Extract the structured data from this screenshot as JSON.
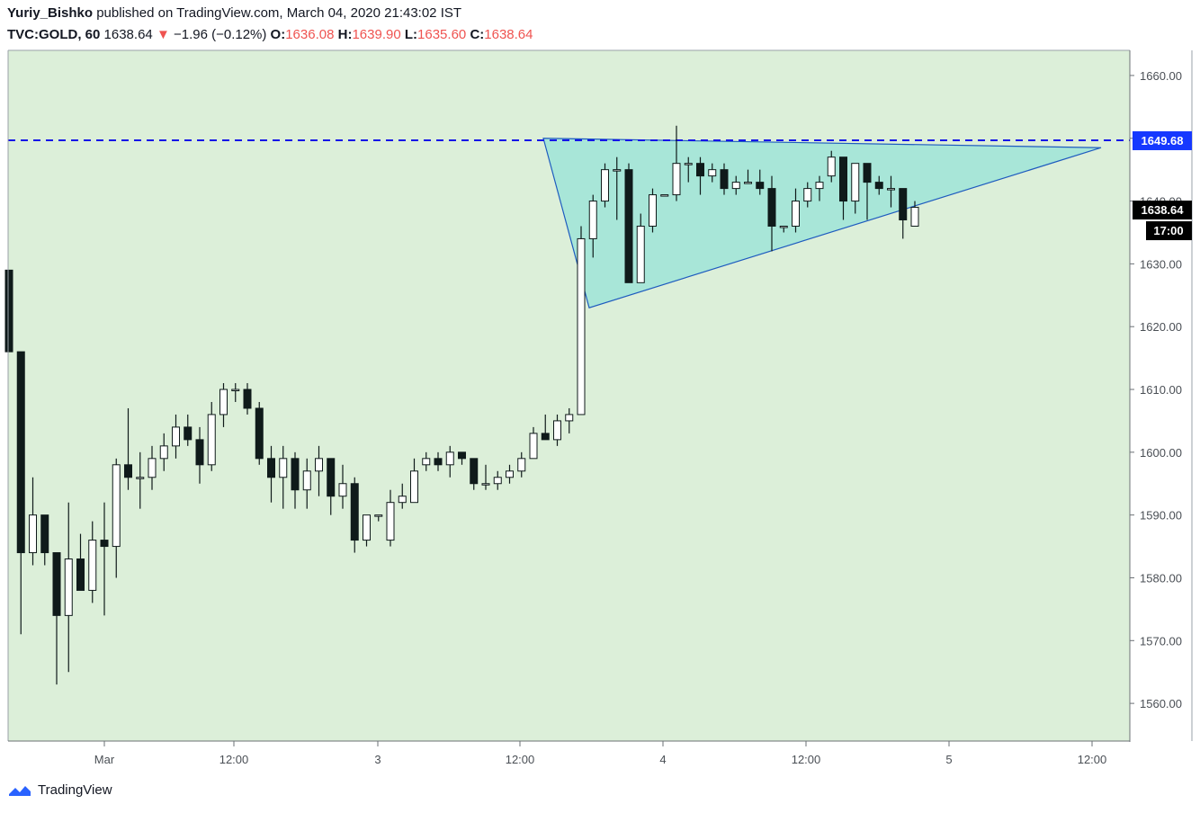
{
  "header": {
    "author": "Yuriy_Bishko",
    "published_text": "published on TradingView.com, March 04, 2020 21:43:02 IST",
    "symbol": "TVC:GOLD, 60",
    "last": "1638.64",
    "change_arrow": "▼",
    "change": "−1.96 (−0.12%)",
    "o_label": "O:",
    "o_value": "1636.08",
    "h_label": "H:",
    "h_value": "1639.90",
    "l_label": "L:",
    "l_value": "1635.60",
    "c_label": "C:",
    "c_value": "1638.64"
  },
  "branding": {
    "logo_text": "TradingView",
    "logo_icon": "tradingview-logo-icon"
  },
  "colors": {
    "background": "#dcefd9",
    "triangle_fill": "#a8e6d8",
    "triangle_stroke": "#1e5bbf",
    "hline": "#1515e8",
    "bear_body": "#0f1a1a",
    "bull_body": "#ffffff",
    "price_tag_bg": "#1638ff",
    "last_tag_bg": "#000000"
  },
  "chart_data": {
    "type": "candlestick",
    "symbol": "TVC:GOLD",
    "interval": "60",
    "ylim": [
      1554,
      1664
    ],
    "y_ticks": [
      "1660.00",
      "1650.00",
      "1640.00",
      "1630.00",
      "1620.00",
      "1610.00",
      "1600.00",
      "1590.00",
      "1580.00",
      "1570.00",
      "1560.00"
    ],
    "x_ticks": [
      "Mar",
      "12:00",
      "3",
      "12:00",
      "4",
      "12:00",
      "5",
      "12:00"
    ],
    "horizontal_line": {
      "value": 1649.68,
      "label": "1649.68",
      "style": "dashed"
    },
    "last_price_label": "1638.64",
    "countdown_label": "17:00",
    "triangle": [
      [
        0,
        1650
      ],
      [
        4,
        1623
      ],
      [
        49,
        1648.5
      ]
    ],
    "candles": [
      {
        "o": 1629,
        "h": 1629,
        "l": 1616,
        "c": 1616
      },
      {
        "o": 1616,
        "h": 1616,
        "l": 1571,
        "c": 1584
      },
      {
        "o": 1584,
        "h": 1596,
        "l": 1582,
        "c": 1590
      },
      {
        "o": 1590,
        "h": 1590,
        "l": 1582,
        "c": 1584
      },
      {
        "o": 1584,
        "h": 1584,
        "l": 1563,
        "c": 1574
      },
      {
        "o": 1574,
        "h": 1592,
        "l": 1565,
        "c": 1583
      },
      {
        "o": 1583,
        "h": 1587,
        "l": 1578,
        "c": 1578
      },
      {
        "o": 1578,
        "h": 1589,
        "l": 1576,
        "c": 1586
      },
      {
        "o": 1586,
        "h": 1592,
        "l": 1574,
        "c": 1585
      },
      {
        "o": 1585,
        "h": 1599,
        "l": 1580,
        "c": 1598
      },
      {
        "o": 1598,
        "h": 1607,
        "l": 1594,
        "c": 1596
      },
      {
        "o": 1596,
        "h": 1600,
        "l": 1591,
        "c": 1596
      },
      {
        "o": 1596,
        "h": 1601,
        "l": 1594,
        "c": 1599
      },
      {
        "o": 1599,
        "h": 1603,
        "l": 1597,
        "c": 1601
      },
      {
        "o": 1601,
        "h": 1606,
        "l": 1599,
        "c": 1604
      },
      {
        "o": 1604,
        "h": 1606,
        "l": 1601,
        "c": 1602
      },
      {
        "o": 1602,
        "h": 1604,
        "l": 1595,
        "c": 1598
      },
      {
        "o": 1598,
        "h": 1608,
        "l": 1597,
        "c": 1606
      },
      {
        "o": 1606,
        "h": 1611,
        "l": 1604,
        "c": 1610
      },
      {
        "o": 1610,
        "h": 1611,
        "l": 1608,
        "c": 1610
      },
      {
        "o": 1610,
        "h": 1611,
        "l": 1606,
        "c": 1607
      },
      {
        "o": 1607,
        "h": 1608,
        "l": 1598,
        "c": 1599
      },
      {
        "o": 1599,
        "h": 1601,
        "l": 1592,
        "c": 1596
      },
      {
        "o": 1596,
        "h": 1601,
        "l": 1591,
        "c": 1599
      },
      {
        "o": 1599,
        "h": 1600,
        "l": 1591,
        "c": 1594
      },
      {
        "o": 1594,
        "h": 1599,
        "l": 1591,
        "c": 1597
      },
      {
        "o": 1597,
        "h": 1601,
        "l": 1593,
        "c": 1599
      },
      {
        "o": 1599,
        "h": 1599,
        "l": 1590,
        "c": 1593
      },
      {
        "o": 1593,
        "h": 1598,
        "l": 1591,
        "c": 1595
      },
      {
        "o": 1595,
        "h": 1596,
        "l": 1584,
        "c": 1586
      },
      {
        "o": 1586,
        "h": 1590,
        "l": 1585,
        "c": 1590
      },
      {
        "o": 1590,
        "h": 1590,
        "l": 1589,
        "c": 1590
      },
      {
        "o": 1586,
        "h": 1594,
        "l": 1585,
        "c": 1592
      },
      {
        "o": 1592,
        "h": 1595,
        "l": 1591,
        "c": 1593
      },
      {
        "o": 1592,
        "h": 1599,
        "l": 1592,
        "c": 1597
      },
      {
        "o": 1598,
        "h": 1600,
        "l": 1597,
        "c": 1599
      },
      {
        "o": 1599,
        "h": 1600,
        "l": 1597,
        "c": 1598
      },
      {
        "o": 1598,
        "h": 1601,
        "l": 1596,
        "c": 1600
      },
      {
        "o": 1600,
        "h": 1600,
        "l": 1598,
        "c": 1599
      },
      {
        "o": 1599,
        "h": 1599,
        "l": 1594,
        "c": 1595
      },
      {
        "o": 1595,
        "h": 1598,
        "l": 1594,
        "c": 1595
      },
      {
        "o": 1595,
        "h": 1597,
        "l": 1594,
        "c": 1596
      },
      {
        "o": 1596,
        "h": 1598,
        "l": 1595,
        "c": 1597
      },
      {
        "o": 1597,
        "h": 1600,
        "l": 1596,
        "c": 1599
      },
      {
        "o": 1599,
        "h": 1604,
        "l": 1599,
        "c": 1603
      },
      {
        "o": 1603,
        "h": 1606,
        "l": 1602,
        "c": 1602
      },
      {
        "o": 1602,
        "h": 1606,
        "l": 1601,
        "c": 1605
      },
      {
        "o": 1605,
        "h": 1607,
        "l": 1603,
        "c": 1606
      },
      {
        "o": 1606,
        "h": 1636,
        "l": 1606,
        "c": 1634
      },
      {
        "o": 1634,
        "h": 1641,
        "l": 1631,
        "c": 1640
      },
      {
        "o": 1640,
        "h": 1646,
        "l": 1639,
        "c": 1645
      },
      {
        "o": 1645,
        "h": 1647,
        "l": 1637,
        "c": 1645
      },
      {
        "o": 1645,
        "h": 1646,
        "l": 1627,
        "c": 1627
      },
      {
        "o": 1627,
        "h": 1638,
        "l": 1627,
        "c": 1636
      },
      {
        "o": 1636,
        "h": 1642,
        "l": 1635,
        "c": 1641
      },
      {
        "o": 1641,
        "h": 1641,
        "l": 1641,
        "c": 1641
      },
      {
        "o": 1641,
        "h": 1652,
        "l": 1640,
        "c": 1646
      },
      {
        "o": 1646,
        "h": 1647,
        "l": 1643,
        "c": 1646
      },
      {
        "o": 1646,
        "h": 1647,
        "l": 1641,
        "c": 1644
      },
      {
        "o": 1644,
        "h": 1646,
        "l": 1643,
        "c": 1645
      },
      {
        "o": 1645,
        "h": 1646,
        "l": 1641,
        "c": 1642
      },
      {
        "o": 1642,
        "h": 1644,
        "l": 1641,
        "c": 1643
      },
      {
        "o": 1643,
        "h": 1645,
        "l": 1643,
        "c": 1643
      },
      {
        "o": 1643,
        "h": 1645,
        "l": 1641,
        "c": 1642
      },
      {
        "o": 1642,
        "h": 1644,
        "l": 1632,
        "c": 1636
      },
      {
        "o": 1636,
        "h": 1636,
        "l": 1635,
        "c": 1636
      },
      {
        "o": 1636,
        "h": 1642,
        "l": 1635,
        "c": 1640
      },
      {
        "o": 1640,
        "h": 1643,
        "l": 1639,
        "c": 1642
      },
      {
        "o": 1642,
        "h": 1644,
        "l": 1640,
        "c": 1643
      },
      {
        "o": 1644,
        "h": 1648,
        "l": 1643,
        "c": 1647
      },
      {
        "o": 1647,
        "h": 1647,
        "l": 1637,
        "c": 1640
      },
      {
        "o": 1640,
        "h": 1646,
        "l": 1638,
        "c": 1646
      },
      {
        "o": 1646,
        "h": 1646,
        "l": 1637,
        "c": 1643
      },
      {
        "o": 1643,
        "h": 1644,
        "l": 1641,
        "c": 1642
      },
      {
        "o": 1642,
        "h": 1644,
        "l": 1639,
        "c": 1642
      },
      {
        "o": 1642,
        "h": 1642,
        "l": 1634,
        "c": 1637
      },
      {
        "o": 1636,
        "h": 1640,
        "l": 1636,
        "c": 1639
      }
    ]
  }
}
